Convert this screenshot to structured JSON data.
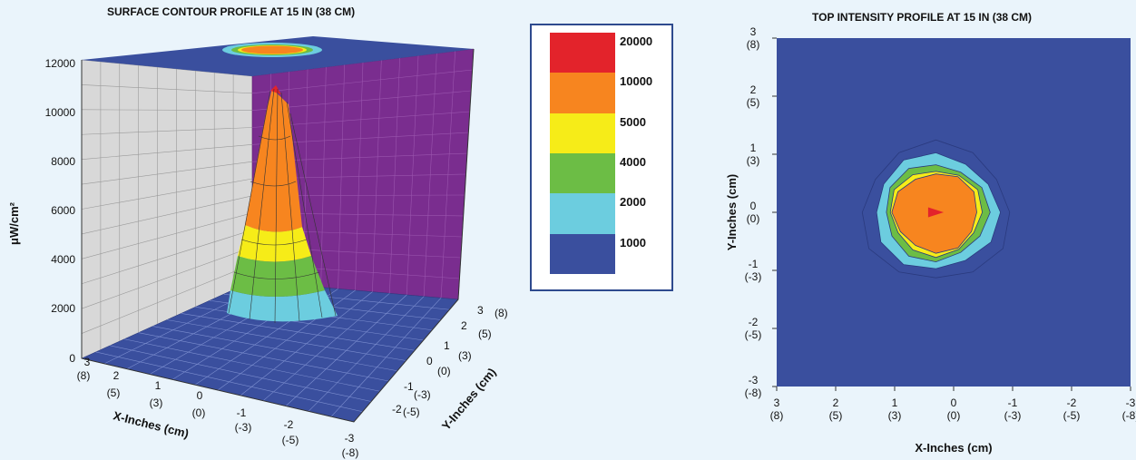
{
  "chart_data": [
    {
      "type": "surface3d",
      "title": "SURFACE CONTOUR PROFILE AT 15 IN (38 CM)",
      "zlabel": "μW/cm²",
      "xlabel": "X-Inches (cm)",
      "ylabel": "Y-Inches (cm)",
      "z_ticks": [
        "0",
        "2000",
        "4000",
        "6000",
        "8000",
        "10000",
        "12000"
      ],
      "x_ticks": [
        {
          "in": "3",
          "cm": "(8)"
        },
        {
          "in": "2",
          "cm": "(5)"
        },
        {
          "in": "1",
          "cm": "(3)"
        },
        {
          "in": "0",
          "cm": "(0)"
        },
        {
          "in": "-1",
          "cm": "(-3)"
        },
        {
          "in": "-2",
          "cm": "(-5)"
        },
        {
          "in": "-3",
          "cm": "(-8)"
        }
      ],
      "y_ticks": [
        {
          "in": "-2",
          "cm": "(-5)"
        },
        {
          "in": "-1",
          "cm": "(-3)"
        },
        {
          "in": "0",
          "cm": "(0)"
        },
        {
          "in": "1",
          "cm": "(3)"
        },
        {
          "in": "2",
          "cm": "(5)"
        },
        {
          "in": "3",
          "cm": "(8)"
        }
      ],
      "zlim": [
        0,
        12000
      ],
      "peak": {
        "x": 0,
        "y": 0,
        "z": 11000
      },
      "colors": {
        "wall_left": "#d8d8d8",
        "wall_back": "#7a2d8f",
        "floor": "#3a4f9e",
        "top": "#3a4f9e"
      }
    },
    {
      "type": "contour",
      "title": "TOP INTENSITY PROFILE AT 15 IN (38 CM)",
      "xlabel": "X-Inches (cm)",
      "ylabel": "Y-Inches (cm)",
      "x_ticks": [
        {
          "in": "3",
          "cm": "(8)"
        },
        {
          "in": "2",
          "cm": "(5)"
        },
        {
          "in": "1",
          "cm": "(3)"
        },
        {
          "in": "0",
          "cm": "(0)"
        },
        {
          "in": "-1",
          "cm": "(-3)"
        },
        {
          "in": "-2",
          "cm": "(-5)"
        },
        {
          "in": "-3",
          "cm": "(-8)"
        }
      ],
      "y_ticks": [
        {
          "in": "3",
          "cm": "(8)"
        },
        {
          "in": "2",
          "cm": "(5)"
        },
        {
          "in": "1",
          "cm": "(3)"
        },
        {
          "in": "0",
          "cm": "(0)"
        },
        {
          "in": "-1",
          "cm": "(-3)"
        },
        {
          "in": "-2",
          "cm": "(-5)"
        },
        {
          "in": "-3",
          "cm": "(-8)"
        }
      ],
      "xlim": [
        3,
        -3
      ],
      "ylim": [
        -3,
        3
      ],
      "center": {
        "x": 0.3,
        "y": 0
      },
      "contour_radii_in": [
        {
          "level": "1000",
          "r": 1.25
        },
        {
          "level": "2000",
          "r": 1.05
        },
        {
          "level": "4000",
          "r": 0.88
        },
        {
          "level": "5000",
          "r": 0.78
        },
        {
          "level": "10000",
          "r": 0.72
        },
        {
          "level": "20000",
          "r": 0.12
        }
      ]
    }
  ],
  "legend": {
    "items": [
      {
        "label": "20000",
        "color": "#e3232b"
      },
      {
        "label": "10000",
        "color": "#f7851f"
      },
      {
        "label": "5000",
        "color": "#f6ec18"
      },
      {
        "label": "4000",
        "color": "#6cbd45"
      },
      {
        "label": "2000",
        "color": "#6ccddf"
      },
      {
        "label": "1000",
        "color": "#3a4f9e"
      }
    ]
  }
}
